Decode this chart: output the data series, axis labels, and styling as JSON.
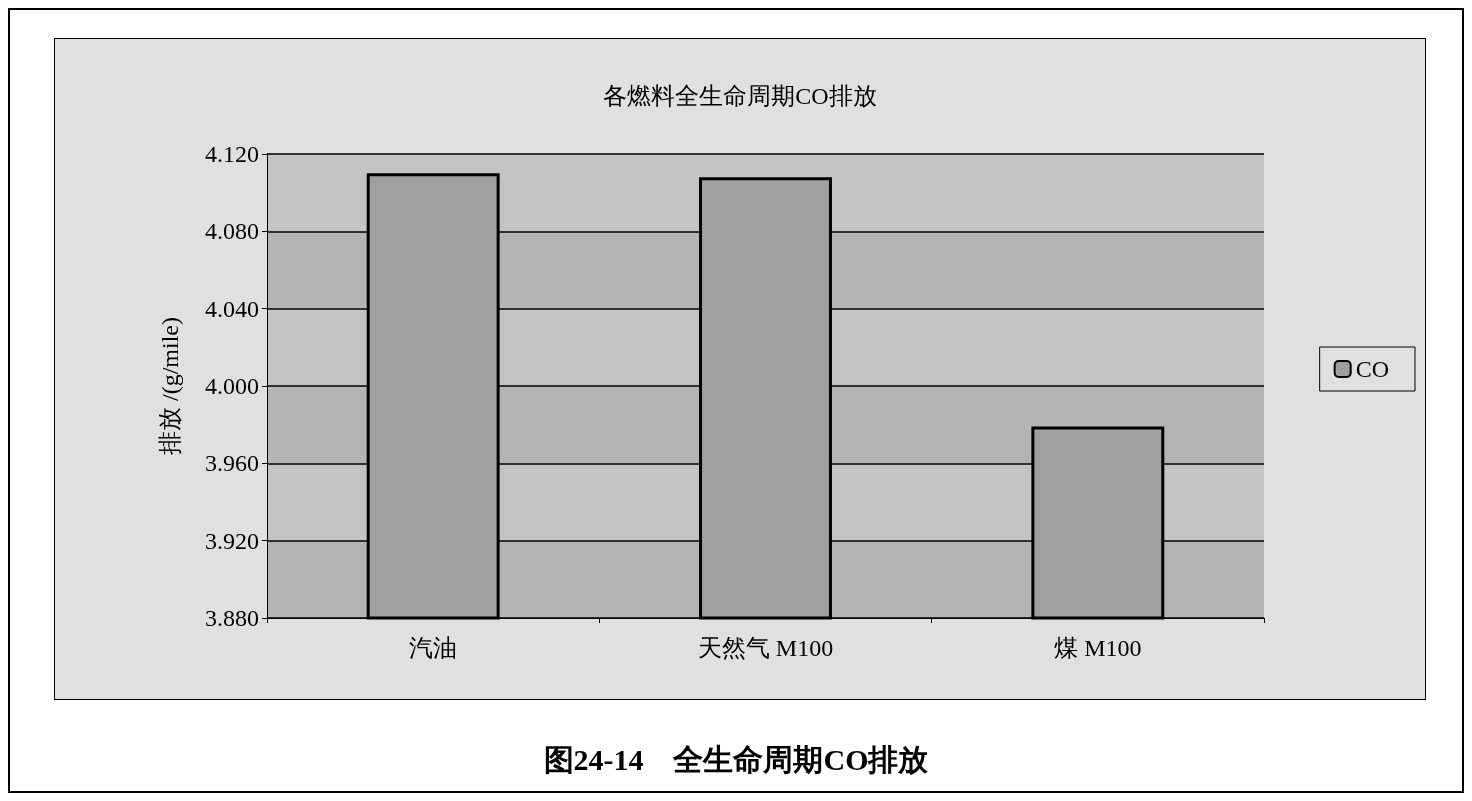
{
  "chart_data": {
    "type": "bar",
    "title": "各燃料全生命周期CO排放",
    "ylabel": "排放 /(g/mile)",
    "categories": [
      "汽油",
      "天然气 M100",
      "煤 M100"
    ],
    "series": [
      {
        "name": "CO",
        "color": "#a0a0a0",
        "values": [
          4.11,
          4.108,
          3.979
        ]
      }
    ],
    "ylim": [
      3.88,
      4.12
    ],
    "yticks": [
      {
        "value": 3.88,
        "label": "3.880"
      },
      {
        "value": 3.92,
        "label": "3.920"
      },
      {
        "value": 3.96,
        "label": "3.960"
      },
      {
        "value": 4.0,
        "label": "4.000"
      },
      {
        "value": 4.04,
        "label": "4.040"
      },
      {
        "value": 4.08,
        "label": "4.080"
      },
      {
        "value": 4.12,
        "label": "4.120"
      }
    ],
    "grid": "y",
    "legend": "right",
    "annotations": [
      "图24-14　全生命周期CO排放"
    ]
  }
}
